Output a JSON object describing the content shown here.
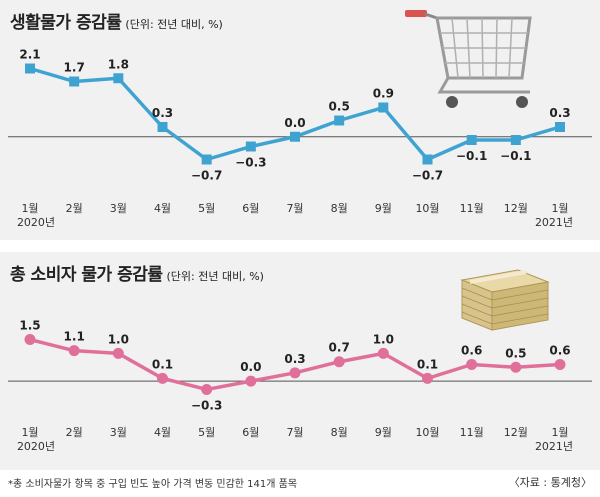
{
  "colors": {
    "top_series": "#3fa3d2",
    "bottom_series": "#e0709a",
    "background": "#f1f1f1"
  },
  "icons": {
    "top": "shopping-cart-icon",
    "bottom": "money-stack-icon"
  },
  "chart_data": [
    {
      "type": "line",
      "title": "생활물가 증감률",
      "unit_note": "(단위: 전년 대비, %)",
      "categories": [
        "1월",
        "2월",
        "3월",
        "4월",
        "5월",
        "6월",
        "7월",
        "8월",
        "9월",
        "10월",
        "11월",
        "12월",
        "1월"
      ],
      "year_labels": {
        "first": "2020년",
        "last": "2021년"
      },
      "values": [
        2.1,
        1.7,
        1.8,
        0.3,
        -0.7,
        -0.3,
        0.0,
        0.5,
        0.9,
        -0.7,
        -0.1,
        -0.1,
        0.3
      ],
      "value_labels": [
        "2.1",
        "1.7",
        "1.8",
        "0.3",
        "−0.7",
        "−0.3",
        "0.0",
        "0.5",
        "0.9",
        "−0.7",
        "−0.1",
        "−0.1",
        "0.3"
      ],
      "ylim": [
        -0.9,
        2.3
      ],
      "grid": false,
      "baseline": 0
    },
    {
      "type": "line",
      "title": "총 소비자 물가 증감률",
      "unit_note": "(단위: 전년 대비, %)",
      "categories": [
        "1월",
        "2월",
        "3월",
        "4월",
        "5월",
        "6월",
        "7월",
        "8월",
        "9월",
        "10월",
        "11월",
        "12월",
        "1월"
      ],
      "year_labels": {
        "first": "2020년",
        "last": "2021년"
      },
      "values": [
        1.5,
        1.1,
        1.0,
        0.1,
        -0.3,
        0.0,
        0.3,
        0.7,
        1.0,
        0.1,
        0.6,
        0.5,
        0.6
      ],
      "value_labels": [
        "1.5",
        "1.1",
        "1.0",
        "0.1",
        "−0.3",
        "0.0",
        "0.3",
        "0.7",
        "1.0",
        "0.1",
        "0.6",
        "0.5",
        "0.6"
      ],
      "ylim": [
        -0.5,
        1.7
      ],
      "grid": false,
      "baseline": 0
    }
  ],
  "footnote": "*총 소비자물가 항목 중 구입 빈도 높아 가격 변동 민감한 141개 품목",
  "source": "〈자료 : 통계청〉"
}
